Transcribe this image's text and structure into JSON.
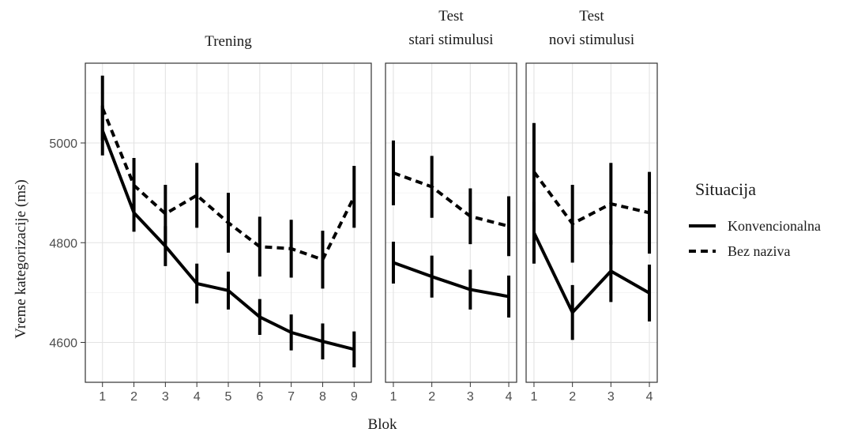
{
  "chart_data": {
    "type": "line",
    "ylabel": "Vreme kategorizacije (ms)",
    "xlabel": "Blok",
    "ylim": [
      4520,
      5160
    ],
    "yticks": [
      4600,
      4800,
      5000
    ],
    "grid": true,
    "legend": {
      "title": "Situacija",
      "placement": "right",
      "entries": [
        {
          "label": "Konvencionalna",
          "style": "solid"
        },
        {
          "label": "Bez naziva",
          "style": "dashed"
        }
      ]
    },
    "panels": [
      {
        "title_lines": [
          "Trening"
        ],
        "x": [
          1,
          2,
          3,
          4,
          5,
          6,
          7,
          8,
          9
        ],
        "series": [
          {
            "name": "Konvencionalna",
            "style": "solid",
            "values": [
              5025,
              4860,
              4793,
              4718,
              4704,
              4651,
              4620,
              4602,
              4586
            ],
            "err": [
              50,
              38,
              40,
              40,
              38,
              36,
              36,
              36,
              36
            ]
          },
          {
            "name": "Bez naziva",
            "style": "dashed",
            "values": [
              5070,
              4915,
              4858,
              4895,
              4840,
              4792,
              4788,
              4766,
              4892
            ],
            "err": [
              65,
              55,
              58,
              65,
              60,
              60,
              58,
              58,
              62
            ]
          }
        ]
      },
      {
        "title_lines": [
          "Test",
          "stari stimulusi"
        ],
        "x": [
          1,
          2,
          3,
          4
        ],
        "series": [
          {
            "name": "Konvencionalna",
            "style": "solid",
            "values": [
              4760,
              4732,
              4706,
              4692
            ],
            "err": [
              42,
              42,
              40,
              42
            ]
          },
          {
            "name": "Bez naziva",
            "style": "dashed",
            "values": [
              4940,
              4912,
              4853,
              4833
            ],
            "err": [
              65,
              62,
              56,
              60
            ]
          }
        ]
      },
      {
        "title_lines": [
          "Test",
          "novi stimulusi"
        ],
        "x": [
          1,
          2,
          3,
          4
        ],
        "series": [
          {
            "name": "Konvencionalna",
            "style": "solid",
            "values": [
              4820,
              4660,
              4743,
              4699
            ],
            "err": [
              62,
              55,
              62,
              57
            ]
          },
          {
            "name": "Bez naziva",
            "style": "dashed",
            "values": [
              4942,
              4838,
              4878,
              4860
            ],
            "err": [
              98,
              78,
              82,
              82
            ]
          }
        ]
      }
    ]
  }
}
